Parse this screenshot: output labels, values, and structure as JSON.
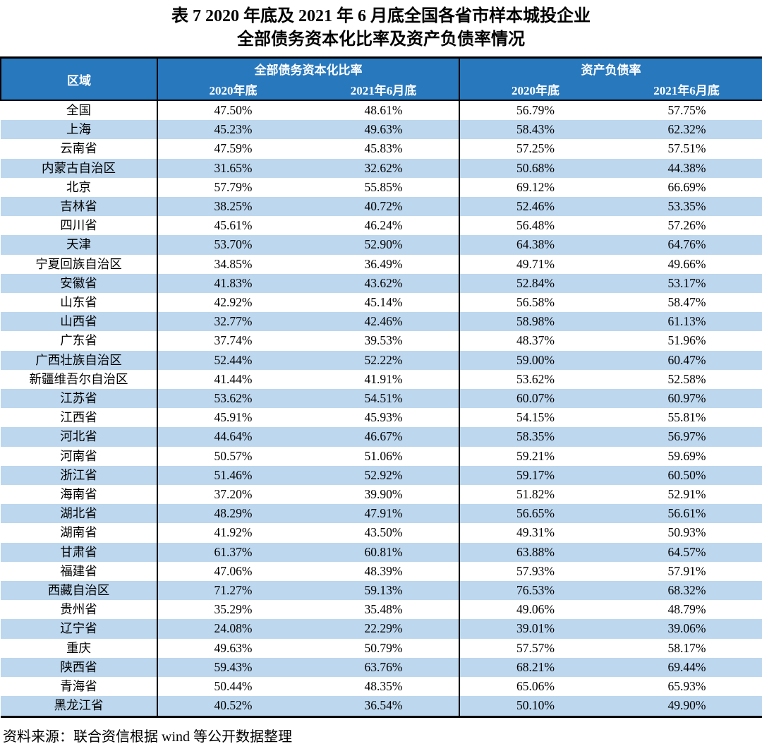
{
  "title": {
    "line1": "表 7  2020 年底及 2021 年 6 月底全国各省市样本城投企业",
    "line2": "全部债务资本化比率及资产负债率情况"
  },
  "table": {
    "region_header": "区域",
    "groups": [
      {
        "label": "全部债务资本化比率",
        "sub": [
          "2020年底",
          "2021年6月底"
        ]
      },
      {
        "label": "资产负债率",
        "sub": [
          "2020年底",
          "2021年6月底"
        ]
      }
    ],
    "rows": [
      {
        "region": "全国",
        "values": [
          "47.50%",
          "48.61%",
          "56.79%",
          "57.75%"
        ]
      },
      {
        "region": "上海",
        "values": [
          "45.23%",
          "49.63%",
          "58.43%",
          "62.32%"
        ]
      },
      {
        "region": "云南省",
        "values": [
          "47.59%",
          "45.83%",
          "57.25%",
          "57.51%"
        ]
      },
      {
        "region": "内蒙古自治区",
        "values": [
          "31.65%",
          "32.62%",
          "50.68%",
          "44.38%"
        ]
      },
      {
        "region": "北京",
        "values": [
          "57.79%",
          "55.85%",
          "69.12%",
          "66.69%"
        ]
      },
      {
        "region": "吉林省",
        "values": [
          "38.25%",
          "40.72%",
          "52.46%",
          "53.35%"
        ]
      },
      {
        "region": "四川省",
        "values": [
          "45.61%",
          "46.24%",
          "56.48%",
          "57.26%"
        ]
      },
      {
        "region": "天津",
        "values": [
          "53.70%",
          "52.90%",
          "64.38%",
          "64.76%"
        ]
      },
      {
        "region": "宁夏回族自治区",
        "values": [
          "34.85%",
          "36.49%",
          "49.71%",
          "49.66%"
        ]
      },
      {
        "region": "安徽省",
        "values": [
          "41.83%",
          "43.62%",
          "52.84%",
          "53.17%"
        ]
      },
      {
        "region": "山东省",
        "values": [
          "42.92%",
          "45.14%",
          "56.58%",
          "58.47%"
        ]
      },
      {
        "region": "山西省",
        "values": [
          "32.77%",
          "42.46%",
          "58.98%",
          "61.13%"
        ]
      },
      {
        "region": "广东省",
        "values": [
          "37.74%",
          "39.53%",
          "48.37%",
          "51.96%"
        ]
      },
      {
        "region": "广西壮族自治区",
        "values": [
          "52.44%",
          "52.22%",
          "59.00%",
          "60.47%"
        ]
      },
      {
        "region": "新疆维吾尔自治区",
        "values": [
          "41.44%",
          "41.91%",
          "53.62%",
          "52.58%"
        ]
      },
      {
        "region": "江苏省",
        "values": [
          "53.62%",
          "54.51%",
          "60.07%",
          "60.97%"
        ]
      },
      {
        "region": "江西省",
        "values": [
          "45.91%",
          "45.93%",
          "54.15%",
          "55.81%"
        ]
      },
      {
        "region": "河北省",
        "values": [
          "44.64%",
          "46.67%",
          "58.35%",
          "56.97%"
        ]
      },
      {
        "region": "河南省",
        "values": [
          "50.57%",
          "51.06%",
          "59.21%",
          "59.69%"
        ]
      },
      {
        "region": "浙江省",
        "values": [
          "51.46%",
          "52.92%",
          "59.17%",
          "60.50%"
        ]
      },
      {
        "region": "海南省",
        "values": [
          "37.20%",
          "39.90%",
          "51.82%",
          "52.91%"
        ]
      },
      {
        "region": "湖北省",
        "values": [
          "48.29%",
          "47.91%",
          "56.65%",
          "56.61%"
        ]
      },
      {
        "region": "湖南省",
        "values": [
          "41.92%",
          "43.50%",
          "49.31%",
          "50.93%"
        ]
      },
      {
        "region": "甘肃省",
        "values": [
          "61.37%",
          "60.81%",
          "63.88%",
          "64.57%"
        ]
      },
      {
        "region": "福建省",
        "values": [
          "47.06%",
          "48.39%",
          "57.93%",
          "57.91%"
        ]
      },
      {
        "region": "西藏自治区",
        "values": [
          "71.27%",
          "59.13%",
          "76.53%",
          "68.32%"
        ]
      },
      {
        "region": "贵州省",
        "values": [
          "35.29%",
          "35.48%",
          "49.06%",
          "48.79%"
        ]
      },
      {
        "region": "辽宁省",
        "values": [
          "24.08%",
          "22.29%",
          "39.01%",
          "39.06%"
        ]
      },
      {
        "region": "重庆",
        "values": [
          "49.63%",
          "50.79%",
          "57.57%",
          "58.17%"
        ]
      },
      {
        "region": "陕西省",
        "values": [
          "59.43%",
          "63.76%",
          "68.21%",
          "69.44%"
        ]
      },
      {
        "region": "青海省",
        "values": [
          "50.44%",
          "48.35%",
          "65.06%",
          "65.93%"
        ]
      },
      {
        "region": "黑龙江省",
        "values": [
          "40.52%",
          "36.54%",
          "50.10%",
          "49.90%"
        ]
      }
    ]
  },
  "source_note": "资料来源：联合资信根据 wind 等公开数据整理",
  "colors": {
    "header_bg": "#2878BE",
    "stripe_bg": "#BDD7EE",
    "header_text": "#FFFFFF",
    "body_text": "#000000",
    "border": "#000000"
  }
}
